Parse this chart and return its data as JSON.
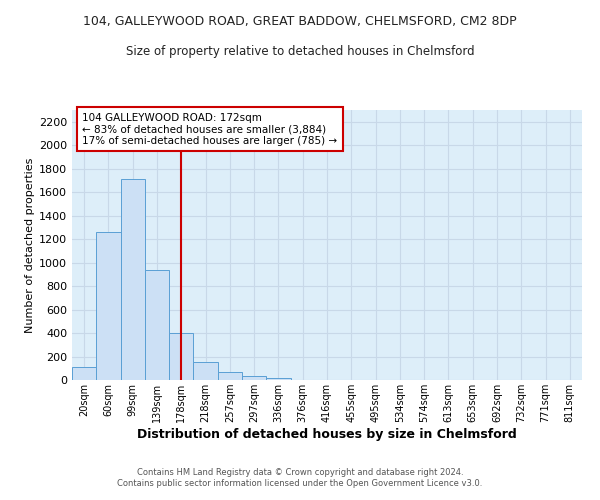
{
  "title_line1": "104, GALLEYWOOD ROAD, GREAT BADDOW, CHELMSFORD, CM2 8DP",
  "title_line2": "Size of property relative to detached houses in Chelmsford",
  "xlabel": "Distribution of detached houses by size in Chelmsford",
  "ylabel": "Number of detached properties",
  "footer_line1": "Contains HM Land Registry data © Crown copyright and database right 2024.",
  "footer_line2": "Contains public sector information licensed under the Open Government Licence v3.0.",
  "bar_labels": [
    "20sqm",
    "60sqm",
    "99sqm",
    "139sqm",
    "178sqm",
    "218sqm",
    "257sqm",
    "297sqm",
    "336sqm",
    "376sqm",
    "416sqm",
    "455sqm",
    "495sqm",
    "534sqm",
    "574sqm",
    "613sqm",
    "653sqm",
    "692sqm",
    "732sqm",
    "771sqm",
    "811sqm"
  ],
  "bar_values": [
    110,
    1265,
    1710,
    940,
    400,
    150,
    68,
    35,
    20,
    0,
    0,
    0,
    0,
    0,
    0,
    0,
    0,
    0,
    0,
    0,
    0
  ],
  "bar_color": "#cce0f5",
  "bar_edge_color": "#5a9fd4",
  "vline_x_index": 4,
  "vline_color": "#cc0000",
  "ylim": [
    0,
    2300
  ],
  "yticks": [
    0,
    200,
    400,
    600,
    800,
    1000,
    1200,
    1400,
    1600,
    1800,
    2000,
    2200
  ],
  "annotation_line1": "104 GALLEYWOOD ROAD: 172sqm",
  "annotation_line2": "← 83% of detached houses are smaller (3,884)",
  "annotation_line3": "17% of semi-detached houses are larger (785) →",
  "annotation_box_color": "#ffffff",
  "annotation_box_edge_color": "#cc0000",
  "grid_color": "#c8d8e8",
  "bg_color": "#ddeef9",
  "title1_fontsize": 9,
  "title2_fontsize": 8.5,
  "ylabel_fontsize": 8,
  "xlabel_fontsize": 9,
  "tick_fontsize": 7,
  "footer_fontsize": 6,
  "annotation_fontsize": 7.5
}
